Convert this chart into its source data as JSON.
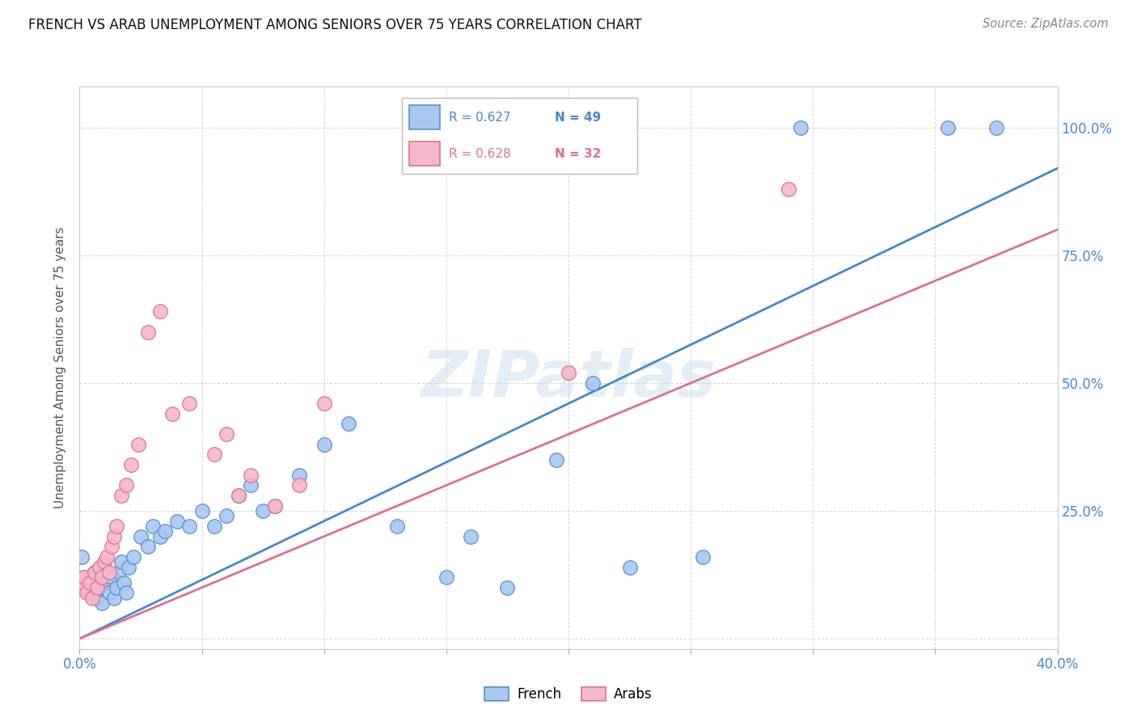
{
  "title": "FRENCH VS ARAB UNEMPLOYMENT AMONG SENIORS OVER 75 YEARS CORRELATION CHART",
  "source": "Source: ZipAtlas.com",
  "ylabel": "Unemployment Among Seniors over 75 years",
  "xlim": [
    0.0,
    0.4
  ],
  "ylim": [
    -0.02,
    1.08
  ],
  "ytick_positions": [
    0.0,
    0.25,
    0.5,
    0.75,
    1.0
  ],
  "yticklabels_right": [
    "",
    "25.0%",
    "50.0%",
    "75.0%",
    "100.0%"
  ],
  "xtick_positions": [
    0.0,
    0.05,
    0.1,
    0.15,
    0.2,
    0.25,
    0.3,
    0.35,
    0.4
  ],
  "xticklabels": [
    "0.0%",
    "",
    "",
    "",
    "",
    "",
    "",
    "",
    "40.0%"
  ],
  "french_R": 0.627,
  "french_N": 49,
  "arab_R": 0.628,
  "arab_N": 32,
  "french_color": "#a8c8f0",
  "arab_color": "#f5b8c8",
  "french_edge_color": "#5590d0",
  "arab_edge_color": "#e07090",
  "french_line_color": "#4488cc",
  "arab_line_color": "#dd7090",
  "watermark": "ZIPatlas",
  "french_x": [
    0.001,
    0.002,
    0.003,
    0.004,
    0.005,
    0.006,
    0.007,
    0.008,
    0.009,
    0.01,
    0.011,
    0.012,
    0.013,
    0.014,
    0.015,
    0.016,
    0.017,
    0.018,
    0.019,
    0.02,
    0.022,
    0.025,
    0.028,
    0.03,
    0.033,
    0.035,
    0.04,
    0.045,
    0.05,
    0.055,
    0.06,
    0.065,
    0.07,
    0.075,
    0.08,
    0.09,
    0.1,
    0.11,
    0.13,
    0.15,
    0.16,
    0.175,
    0.195,
    0.21,
    0.225,
    0.255,
    0.295,
    0.355,
    0.375
  ],
  "french_y": [
    0.16,
    0.12,
    0.1,
    0.09,
    0.11,
    0.13,
    0.08,
    0.1,
    0.07,
    0.14,
    0.11,
    0.09,
    0.12,
    0.08,
    0.1,
    0.13,
    0.15,
    0.11,
    0.09,
    0.14,
    0.16,
    0.2,
    0.18,
    0.22,
    0.2,
    0.21,
    0.23,
    0.22,
    0.25,
    0.22,
    0.24,
    0.28,
    0.3,
    0.25,
    0.26,
    0.32,
    0.38,
    0.42,
    0.22,
    0.12,
    0.2,
    0.1,
    0.35,
    0.5,
    0.14,
    0.16,
    1.0,
    1.0,
    1.0
  ],
  "arab_x": [
    0.001,
    0.002,
    0.003,
    0.004,
    0.005,
    0.006,
    0.007,
    0.008,
    0.009,
    0.01,
    0.011,
    0.012,
    0.013,
    0.014,
    0.015,
    0.017,
    0.019,
    0.021,
    0.024,
    0.028,
    0.033,
    0.038,
    0.045,
    0.055,
    0.06,
    0.065,
    0.07,
    0.08,
    0.09,
    0.1,
    0.2,
    0.29
  ],
  "arab_y": [
    0.1,
    0.12,
    0.09,
    0.11,
    0.08,
    0.13,
    0.1,
    0.14,
    0.12,
    0.15,
    0.16,
    0.13,
    0.18,
    0.2,
    0.22,
    0.28,
    0.3,
    0.34,
    0.38,
    0.6,
    0.64,
    0.44,
    0.46,
    0.36,
    0.4,
    0.28,
    0.32,
    0.26,
    0.3,
    0.46,
    0.52,
    0.88
  ],
  "french_regline_x": [
    0.0,
    0.4
  ],
  "french_regline_y": [
    0.0,
    0.92
  ],
  "arab_regline_x": [
    0.0,
    0.4
  ],
  "arab_regline_y": [
    0.0,
    0.8
  ]
}
